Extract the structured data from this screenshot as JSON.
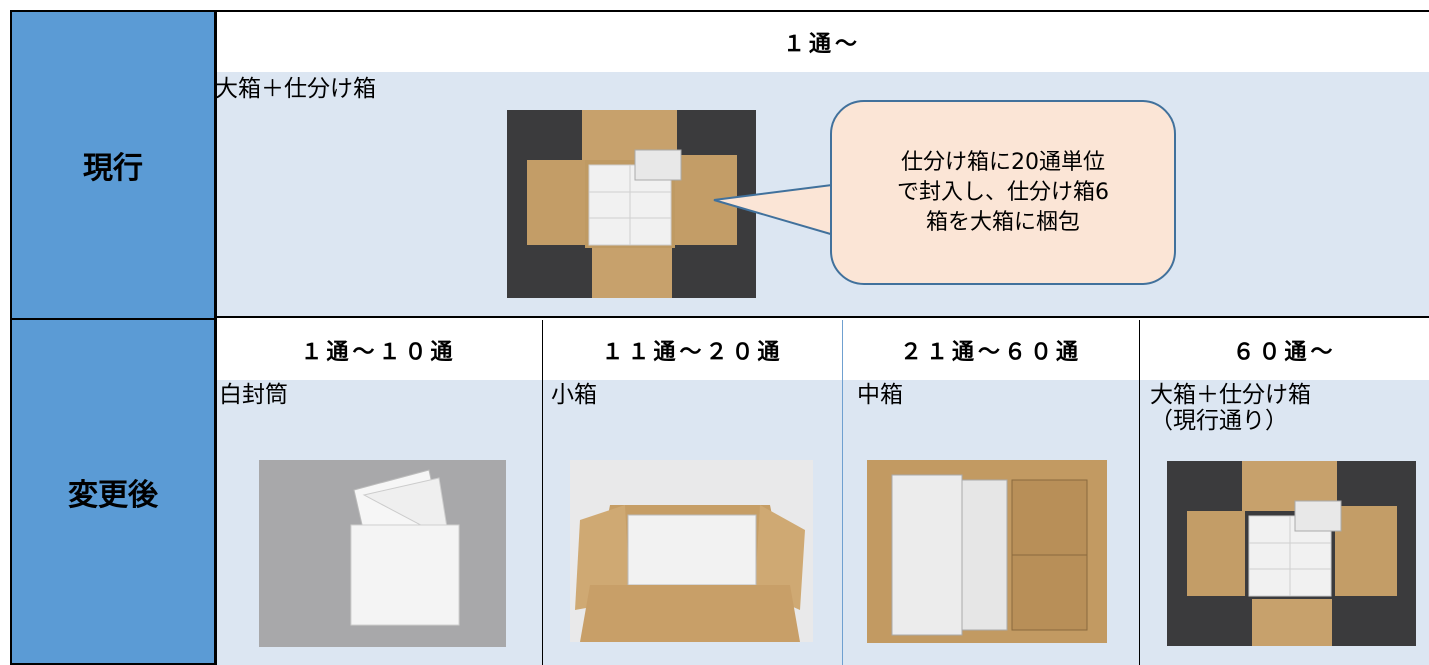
{
  "rows": [
    {
      "label": "現行",
      "header": "１通～",
      "cells": [
        {
          "label": [
            "大箱＋仕分け箱"
          ]
        }
      ],
      "callout": [
        "仕分け箱に20通単位",
        "で封入し、仕分け箱6",
        "箱を大箱に梱包"
      ]
    },
    {
      "label": "変更後",
      "headers": [
        "１通～１０通",
        "１１通～２０通",
        "２１通～６０通",
        "６０通～"
      ],
      "cells": [
        {
          "label": [
            "白封筒"
          ]
        },
        {
          "label": [
            "小箱"
          ]
        },
        {
          "label": [
            "中箱"
          ]
        },
        {
          "label": [
            "大箱＋仕分け箱",
            "（現行通り）"
          ]
        }
      ]
    }
  ]
}
